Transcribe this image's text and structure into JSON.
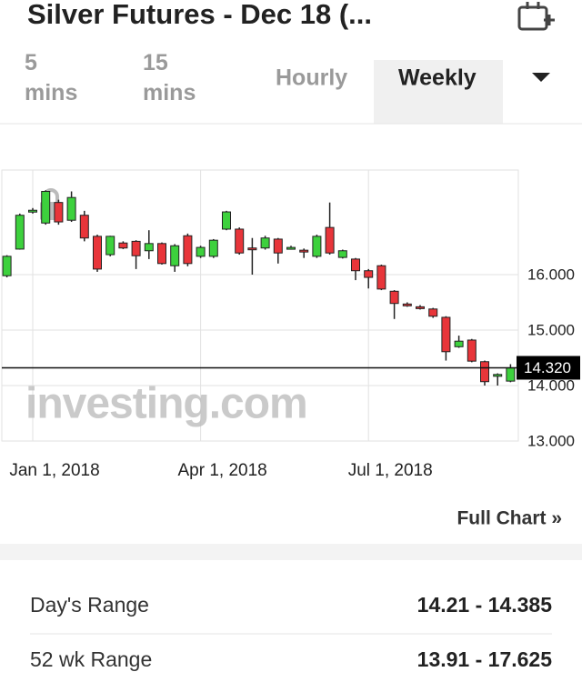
{
  "header": {
    "title": "Silver Futures - Dec 18 (..."
  },
  "tabs": [
    "5 mins",
    "15 mins",
    "Hourly",
    "Weekly"
  ],
  "chart_data": {
    "type": "candlestick",
    "categories": [
      null,
      null,
      null,
      null,
      null,
      null,
      null,
      null,
      null,
      null,
      null,
      null,
      null,
      null,
      null,
      null,
      null,
      null,
      null,
      null,
      null,
      null,
      null,
      null,
      null,
      null,
      null,
      null,
      null,
      null,
      null,
      null,
      null,
      null,
      null,
      null,
      null,
      null,
      null,
      null
    ],
    "open": [
      15.98,
      16.46,
      17.13,
      16.93,
      17.3,
      16.98,
      17.07,
      16.69,
      16.36,
      16.57,
      16.6,
      16.43,
      16.56,
      16.16,
      16.7,
      16.33,
      16.33,
      16.82,
      16.82,
      16.48,
      16.48,
      16.64,
      16.47,
      16.44,
      16.33,
      16.85,
      16.31,
      16.28,
      16.07,
      16.16,
      15.7,
      15.47,
      15.42,
      15.38,
      15.23,
      14.7,
      14.82,
      14.43,
      14.18,
      14.08
    ],
    "high": [
      16.35,
      17.1,
      17.2,
      17.52,
      17.35,
      17.5,
      17.15,
      16.72,
      16.7,
      16.6,
      16.62,
      16.8,
      16.58,
      16.55,
      16.74,
      16.52,
      16.64,
      17.15,
      16.85,
      16.66,
      16.7,
      16.66,
      16.52,
      16.47,
      16.72,
      17.3,
      16.45,
      16.3,
      16.1,
      16.18,
      15.72,
      15.5,
      15.45,
      15.4,
      15.25,
      14.9,
      14.84,
      14.45,
      14.22,
      14.385
    ],
    "low": [
      15.95,
      16.45,
      17.1,
      16.9,
      16.9,
      16.95,
      16.6,
      16.05,
      16.33,
      16.46,
      16.1,
      16.28,
      16.18,
      16.05,
      16.15,
      16.3,
      16.3,
      16.8,
      16.36,
      16.0,
      16.45,
      16.2,
      16.45,
      16.3,
      16.3,
      16.36,
      16.29,
      15.9,
      15.75,
      15.72,
      15.2,
      15.42,
      15.37,
      15.22,
      14.45,
      14.68,
      14.42,
      14.0,
      14.0,
      14.06
    ],
    "close": [
      16.33,
      17.07,
      17.16,
      17.5,
      16.95,
      17.39,
      16.66,
      16.1,
      16.69,
      16.48,
      16.34,
      16.56,
      16.2,
      16.52,
      16.2,
      16.49,
      16.62,
      17.13,
      16.39,
      16.45,
      16.66,
      16.39,
      16.49,
      16.42,
      16.69,
      16.39,
      16.43,
      16.07,
      15.95,
      15.74,
      15.48,
      15.44,
      15.39,
      15.25,
      14.61,
      14.8,
      14.44,
      14.07,
      14.2,
      14.32
    ],
    "up_color": "#3dd13d",
    "down_color": "#e8353a",
    "ylim": [
      13.0,
      17.885
    ],
    "yticks": [
      {
        "value": 13,
        "label": "13.000"
      },
      {
        "value": 14,
        "label": "14.000"
      },
      {
        "value": 15,
        "label": "15.000"
      },
      {
        "value": 16,
        "label": "16.000"
      }
    ],
    "xticks": [
      {
        "value": 2,
        "label": "Jan 1, 2018"
      },
      {
        "value": 15,
        "label": "Apr 1, 2018"
      },
      {
        "value": 28,
        "label": "Jul 1, 2018"
      }
    ],
    "last_price": {
      "value": 14.32,
      "label": "14.320"
    },
    "watermark": "investing.com",
    "grid": true
  },
  "full_chart": "Full Chart »",
  "stats": [
    {
      "label": "Day's Range",
      "value": "14.21 - 14.385"
    },
    {
      "label": "52 wk Range",
      "value": "13.91 - 17.625"
    }
  ]
}
